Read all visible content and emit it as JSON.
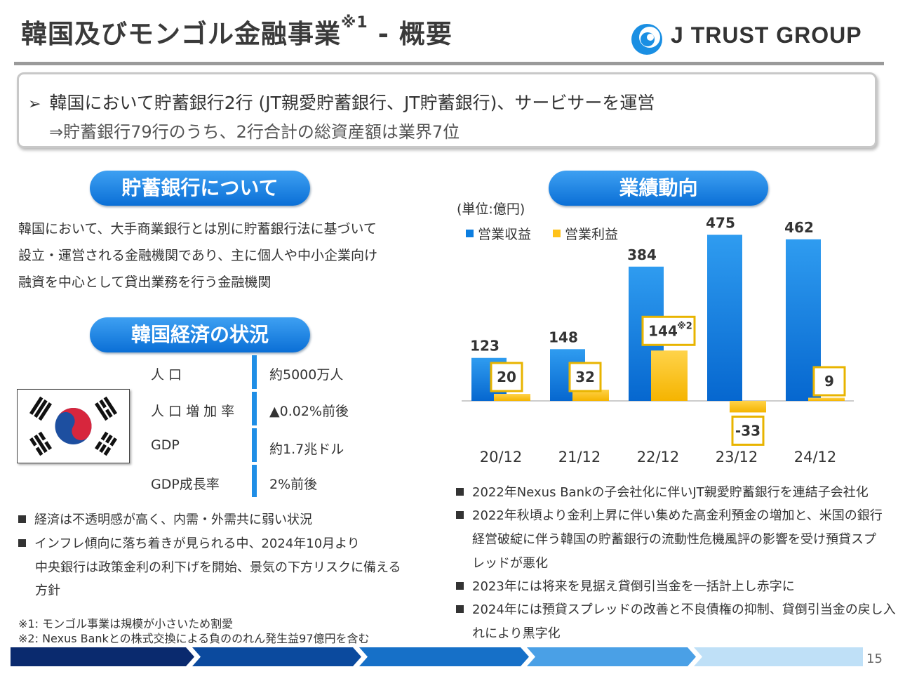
{
  "header": {
    "title_main": "韓国及びモンゴル金融事業",
    "title_sup": "※1",
    "title_tail": " - 概要",
    "logo_text": "J TRUST GROUP"
  },
  "summary": {
    "line1": "韓国において貯蓄銀行2行 (JT親愛貯蓄銀行、JT貯蓄銀行)、サービサーを運営",
    "line2": "⇒貯蓄銀行79行のうち、2行合計の総資産額は業界7位",
    "bullet_icon": "arrow-bullet-icon"
  },
  "savings_bank": {
    "heading": "貯蓄銀行について",
    "lines": [
      "韓国において、大手商業銀行とは別に貯蓄銀行法に基づいて",
      "設立・運営される金融機関であり、主に個人や中小企業向け",
      "融資を中心として貸出業務を行う金融機関"
    ]
  },
  "economy": {
    "heading": "韓国経済の状況",
    "flag_icon": "south-korea-flag-icon",
    "stats": [
      {
        "label": "人 口",
        "value": "約5000万人"
      },
      {
        "label": "人 口 増 加 率",
        "value": "▲0.02%前後"
      },
      {
        "label": "GDP",
        "value": "約1.7兆ドル"
      },
      {
        "label": "GDP成長率",
        "value": "2%前後"
      }
    ],
    "bullets": [
      [
        "経済は不透明感が高く、内需・外需共に弱い状況"
      ],
      [
        "インフレ傾向に落ち着きが見られる中、2024年10月より",
        "中央銀行は政策金利の利下げを開始、景気の下方リスクに備える",
        "方針"
      ]
    ]
  },
  "notes": [
    "※1: モンゴル事業は規模が小さいため割愛",
    "※2: Nexus Bankとの株式交換による負ののれん発生益97億円を含む"
  ],
  "performance": {
    "heading": "業績動向",
    "unit": "(単位:億円)",
    "annotation": "※2",
    "bullets": [
      [
        "2022年Nexus Bankの子会社化に伴いJT親愛貯蓄銀行を連結子会社化"
      ],
      [
        "2022年秋頃より金利上昇に伴い集めた高金利預金の増加と、米国の銀行",
        "経営破綻に伴う韓国の貯蓄銀行の流動性危機風評の影響を受け預貸スプ",
        "レッドが悪化"
      ],
      [
        "2023年には将来を見据え貸倒引当金を一括計上し赤字に"
      ],
      [
        "2024年には預貸スプレッドの改善と不良債権の抑制、貸倒引当金の戻し入",
        "れにより黒字化"
      ]
    ]
  },
  "chart_data": {
    "type": "bar",
    "categories": [
      "20/12",
      "21/12",
      "22/12",
      "23/12",
      "24/12"
    ],
    "series": [
      {
        "name": "営業収益",
        "values": [
          123,
          148,
          384,
          475,
          462
        ],
        "color": "#0c7ee0"
      },
      {
        "name": "営業利益",
        "values": [
          20,
          32,
          144,
          -33,
          9
        ],
        "color": "#ffc21a"
      }
    ],
    "legend_position": "top-left",
    "grid": false,
    "highlight_color": "#e8b400"
  },
  "footer": {
    "page_number": "15",
    "colors": [
      "#0a2a6e",
      "#0b4a9e",
      "#1670c8",
      "#4aa0e6",
      "#bfe0f7"
    ]
  }
}
